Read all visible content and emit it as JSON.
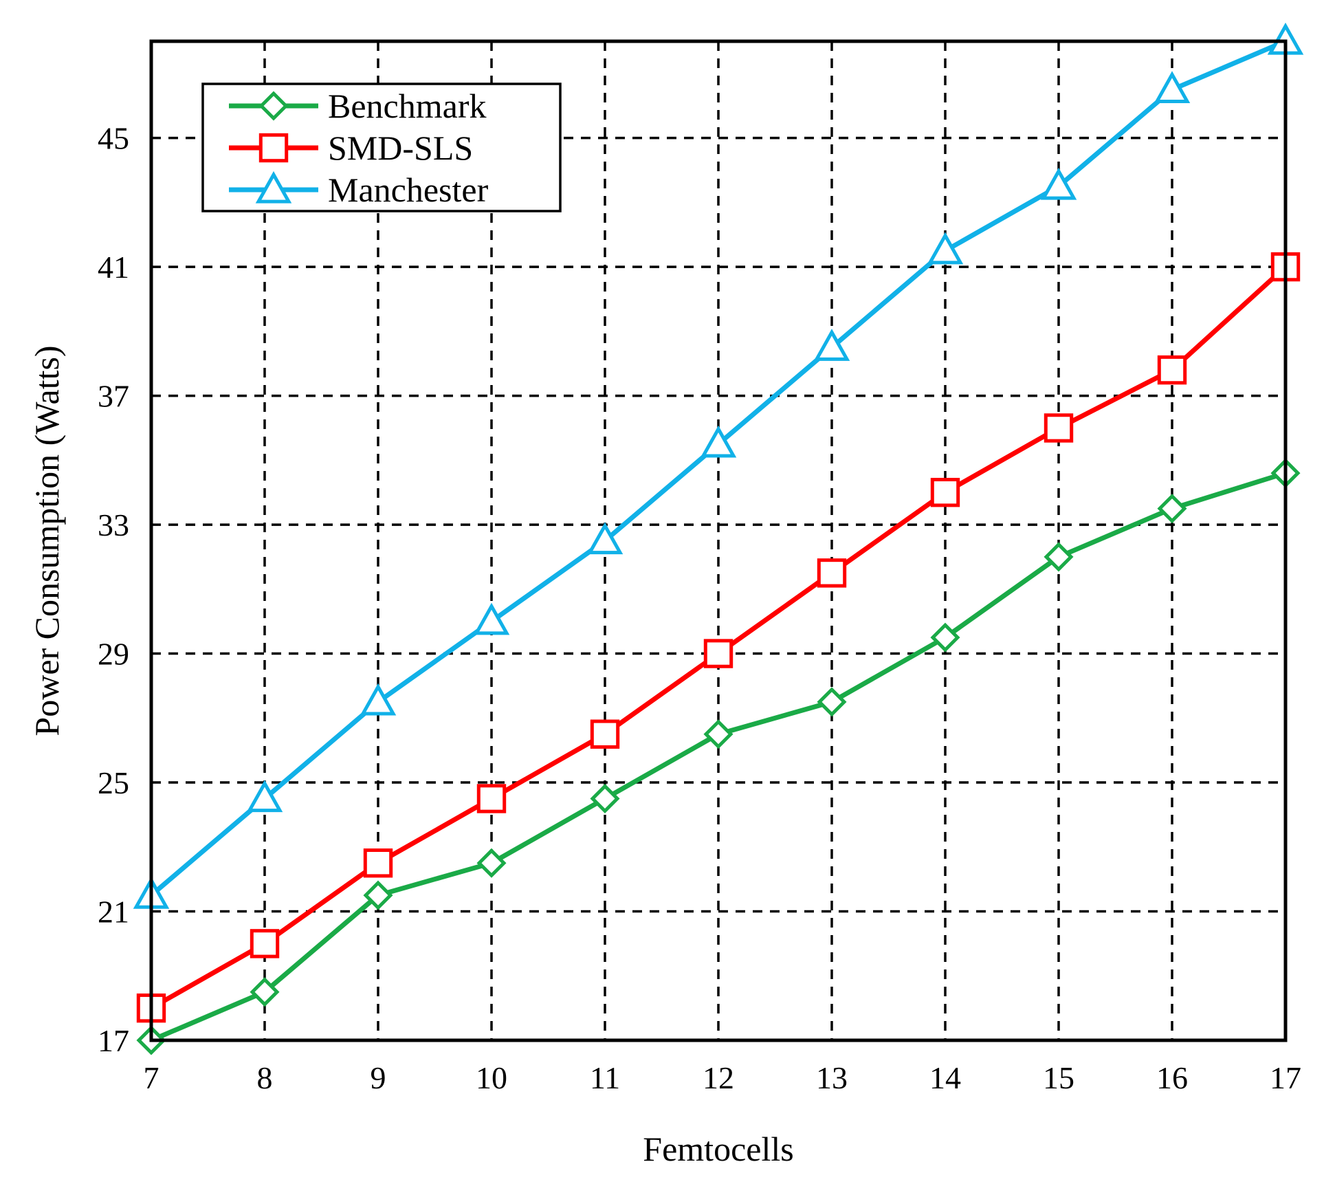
{
  "chart_data": {
    "type": "line",
    "xlabel": "Femtocells",
    "ylabel": "Power Consumption (Watts)",
    "xlim": [
      7,
      17
    ],
    "ylim": [
      17,
      48
    ],
    "xticks": [
      7,
      8,
      9,
      10,
      11,
      12,
      13,
      14,
      15,
      16,
      17
    ],
    "yticks": [
      17,
      21,
      25,
      29,
      33,
      37,
      41,
      45
    ],
    "grid": true,
    "legend_position": "top-left",
    "x": [
      7,
      8,
      9,
      10,
      11,
      12,
      13,
      14,
      15,
      16,
      17
    ],
    "series": [
      {
        "name": "Benchmark",
        "color": "#1aaa47",
        "marker": "diamond",
        "values": [
          17.0,
          18.5,
          21.5,
          22.5,
          24.5,
          26.5,
          27.5,
          29.5,
          32.0,
          33.5,
          34.6
        ]
      },
      {
        "name": "SMD-SLS",
        "color": "#ff0000",
        "marker": "square",
        "values": [
          18.0,
          20.0,
          22.5,
          24.5,
          26.5,
          29.0,
          31.5,
          34.0,
          36.0,
          37.8,
          41.0
        ]
      },
      {
        "name": "Manchester",
        "color": "#11b1e8",
        "marker": "triangle",
        "values": [
          21.5,
          24.5,
          27.5,
          30.0,
          32.5,
          35.5,
          38.5,
          41.5,
          43.5,
          46.5,
          48.0
        ]
      }
    ]
  }
}
